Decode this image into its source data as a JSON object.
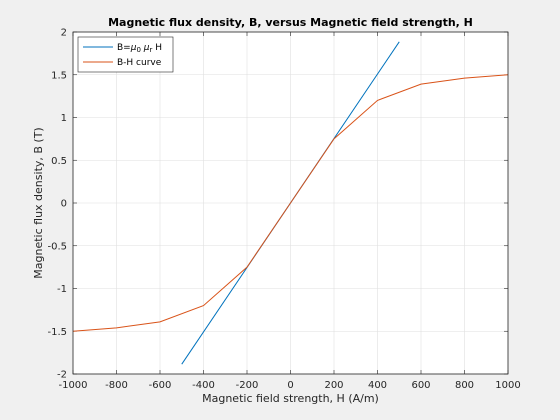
{
  "chart_data": {
    "type": "line",
    "title": "Magnetic flux density, B, versus Magnetic field strength, H",
    "xlabel": "Magnetic field strength, H (A/m)",
    "ylabel": "Magnetic flux density, B (T)",
    "xlim": [
      -1000,
      1000
    ],
    "ylim": [
      -2,
      2
    ],
    "xticks": [
      -1000,
      -800,
      -600,
      -400,
      -200,
      0,
      200,
      400,
      600,
      800,
      1000
    ],
    "yticks": [
      -2,
      -1.5,
      -1,
      -0.5,
      0,
      0.5,
      1,
      1.5,
      2
    ],
    "xtick_labels": [
      "-1000",
      "-800",
      "-600",
      "-400",
      "-200",
      "0",
      "200",
      "400",
      "600",
      "800",
      "1000"
    ],
    "ytick_labels": [
      "-2",
      "-1.5",
      "-1",
      "-0.5",
      "0",
      "0.5",
      "1",
      "1.5",
      "2"
    ],
    "grid": true,
    "legend": "top-left",
    "series": [
      {
        "name": "B=μ0 μr H",
        "color": "#0072bd",
        "x": [
          -500,
          500
        ],
        "y": [
          -1.885,
          1.885
        ]
      },
      {
        "name": "B-H curve",
        "color": "#d95319",
        "x": [
          -1000,
          -800,
          -600,
          -400,
          -200,
          0,
          200,
          400,
          600,
          800,
          1000
        ],
        "y": [
          -1.5,
          -1.46,
          -1.39,
          -1.2,
          -0.75,
          0,
          0.75,
          1.2,
          1.39,
          1.46,
          1.5
        ]
      }
    ]
  }
}
